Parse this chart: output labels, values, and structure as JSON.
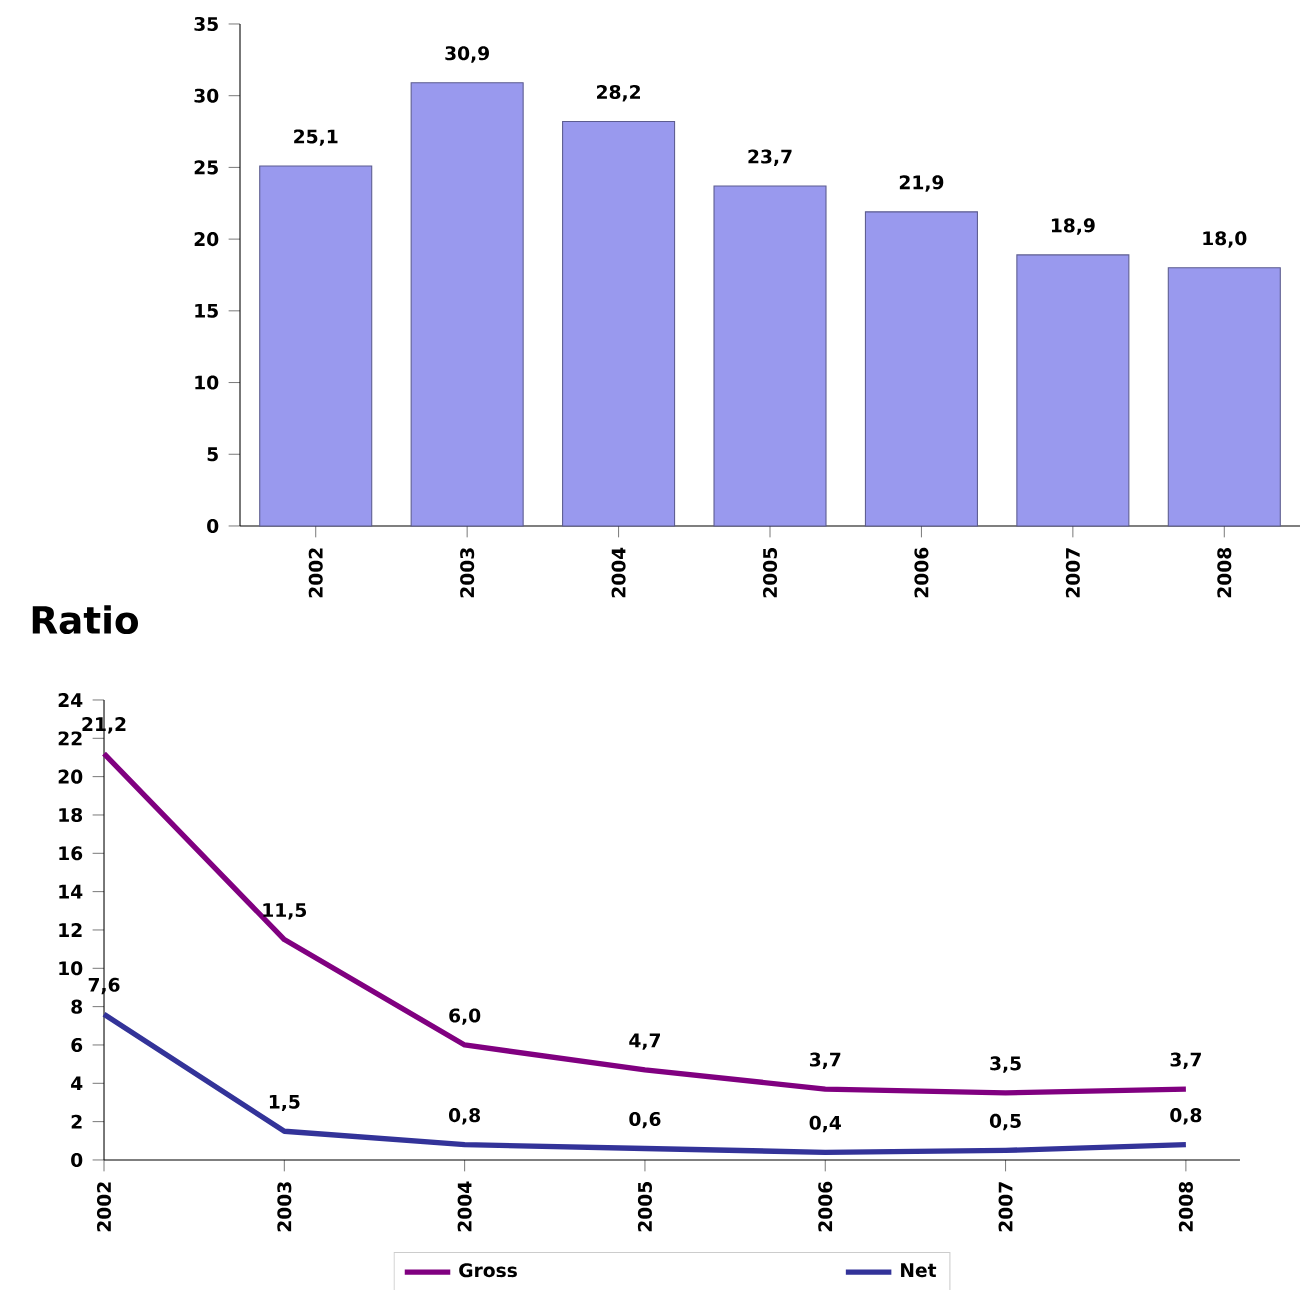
{
  "chart_data": [
    {
      "type": "bar",
      "categories": [
        "2002",
        "2003",
        "2004",
        "2005",
        "2006",
        "2007",
        "2008"
      ],
      "values": [
        25.1,
        30.9,
        28.2,
        23.7,
        21.9,
        18.9,
        18.0
      ],
      "value_labels": [
        "25,1",
        "30,9",
        "28,2",
        "23,7",
        "21,9",
        "18,9",
        "18,0"
      ],
      "color": "#9999ee",
      "ylim": [
        0,
        35
      ],
      "yticks": [
        0,
        5,
        10,
        15,
        20,
        25,
        30,
        35
      ]
    },
    {
      "type": "line",
      "title": "Ratio",
      "categories": [
        "2002",
        "2003",
        "2004",
        "2005",
        "2006",
        "2007",
        "2008"
      ],
      "series": [
        {
          "name": "Gross",
          "color": "#800080",
          "values": [
            21.2,
            11.5,
            6.0,
            4.7,
            3.7,
            3.5,
            3.7
          ],
          "value_labels": [
            "21,2",
            "11,5",
            "6,0",
            "4,7",
            "3,7",
            "3,5",
            "3,7"
          ]
        },
        {
          "name": "Net",
          "color": "#333399",
          "values": [
            7.6,
            1.5,
            0.8,
            0.6,
            0.4,
            0.5,
            0.8
          ],
          "value_labels": [
            "7,6",
            "1,5",
            "0,8",
            "0,6",
            "0,4",
            "0,5",
            "0,8"
          ]
        }
      ],
      "ylim": [
        0,
        24
      ],
      "yticks": [
        0,
        2,
        4,
        6,
        8,
        10,
        12,
        14,
        16,
        18,
        20,
        22,
        24
      ],
      "legend": "bottom"
    }
  ]
}
